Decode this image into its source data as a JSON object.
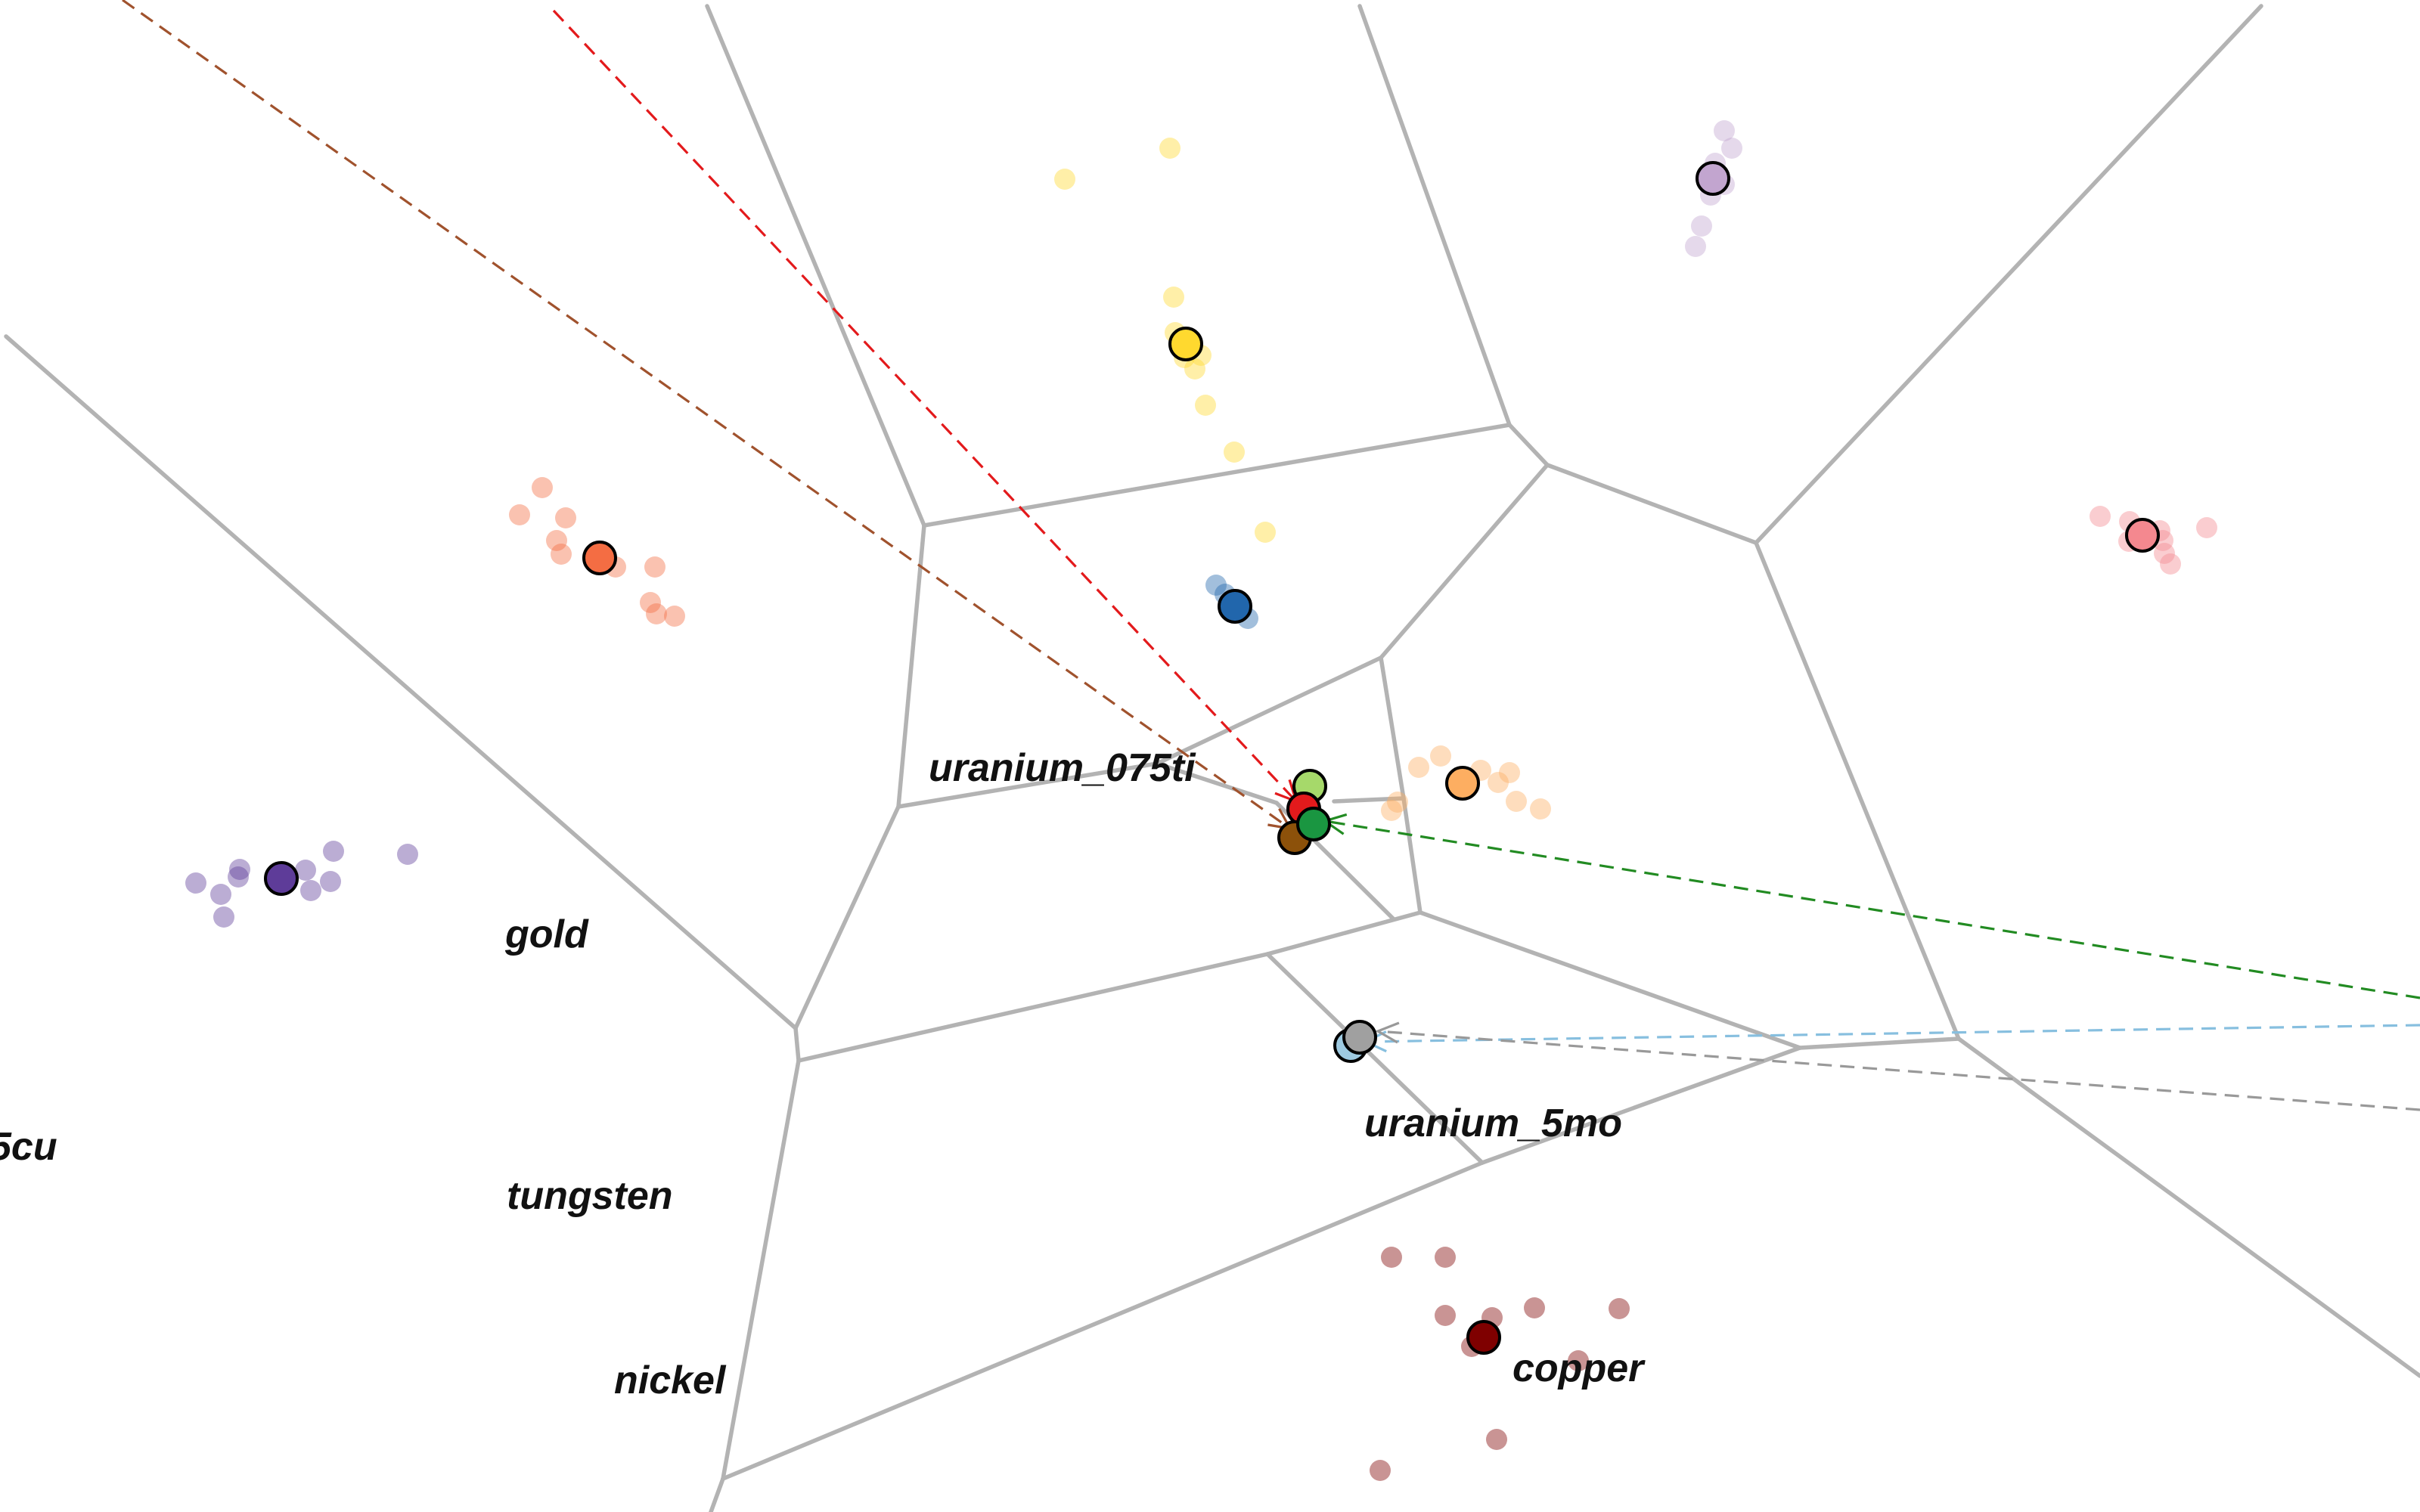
{
  "chart_data": {
    "type": "scatter",
    "title": "",
    "xlabel": "",
    "ylabel": "",
    "grid": false,
    "legend": "none",
    "labels": [
      "uranium_075ti",
      "gold",
      "uranium_5mo",
      "tungsten",
      "nickel",
      "copper",
      "5cu"
    ],
    "clusters": [
      {
        "color": "#ffd92f",
        "centroid": [
          1568,
          455
        ],
        "members": [
          [
            1408,
            237
          ],
          [
            1547,
            196
          ],
          [
            1552,
            393
          ],
          [
            1554,
            440
          ],
          [
            1566,
            473
          ],
          [
            1580,
            488
          ],
          [
            1588,
            470
          ],
          [
            1594,
            536
          ],
          [
            1632,
            598
          ],
          [
            1673,
            704
          ]
        ]
      },
      {
        "color": "#c2a5cf",
        "centroid": [
          2265,
          236
        ],
        "members": [
          [
            2280,
            173
          ],
          [
            2290,
            196
          ],
          [
            2268,
            216
          ],
          [
            2280,
            244
          ],
          [
            2262,
            258
          ],
          [
            2250,
            299
          ],
          [
            2242,
            326
          ]
        ]
      },
      {
        "color": "#f46d43",
        "centroid": [
          793,
          738
        ],
        "members": [
          [
            717,
            645
          ],
          [
            748,
            685
          ],
          [
            687,
            681
          ],
          [
            736,
            715
          ],
          [
            742,
            733
          ],
          [
            814,
            750
          ],
          [
            866,
            750
          ],
          [
            860,
            797
          ],
          [
            868,
            812
          ],
          [
            892,
            815
          ]
        ]
      },
      {
        "color": "#2166ac",
        "centroid": [
          1633,
          802
        ],
        "members": [
          [
            1608,
            774
          ],
          [
            1620,
            786
          ],
          [
            1642,
            806
          ],
          [
            1650,
            818
          ]
        ]
      },
      {
        "color": "#f4888f",
        "centroid": [
          2833,
          708
        ],
        "members": [
          [
            2777,
            683
          ],
          [
            2816,
            690
          ],
          [
            2856,
            702
          ],
          [
            2918,
            698
          ],
          [
            2815,
            716
          ],
          [
            2860,
            715
          ],
          [
            2862,
            732
          ],
          [
            2870,
            746
          ]
        ]
      },
      {
        "color": "#5e3c99",
        "centroid": [
          372,
          1162
        ],
        "members": [
          [
            259,
            1168
          ],
          [
            292,
            1183
          ],
          [
            296,
            1213
          ],
          [
            317,
            1150
          ],
          [
            315,
            1160
          ],
          [
            404,
            1151
          ],
          [
            441,
            1126
          ],
          [
            437,
            1166
          ],
          [
            411,
            1178
          ],
          [
            539,
            1130
          ]
        ]
      },
      {
        "color": "#fdae61",
        "centroid": [
          1934,
          1036
        ],
        "members": [
          [
            1876,
            1015
          ],
          [
            1905,
            1000
          ],
          [
            1958,
            1019
          ],
          [
            1996,
            1022
          ],
          [
            1981,
            1035
          ],
          [
            2005,
            1060
          ],
          [
            2037,
            1070
          ],
          [
            1848,
            1061
          ],
          [
            1840,
            1072
          ]
        ]
      },
      {
        "color": "#7f0000",
        "centroid": [
          1962,
          1769
        ],
        "members": [
          [
            1840,
            1663
          ],
          [
            1911,
            1663
          ],
          [
            1911,
            1740
          ],
          [
            1973,
            1743
          ],
          [
            2029,
            1730
          ],
          [
            2141,
            1731
          ],
          [
            2087,
            1800
          ],
          [
            1946,
            1781
          ],
          [
            1979,
            1904
          ],
          [
            1825,
            1945
          ]
        ]
      }
    ],
    "points": [
      {
        "color": "#a6d96a",
        "xy": [
          1732,
          1040
        ]
      },
      {
        "color": "#e31a1c",
        "xy": [
          1724,
          1070
        ]
      },
      {
        "color": "#8c510a",
        "xy": [
          1712,
          1108
        ]
      },
      {
        "color": "#1a9641",
        "xy": [
          1737,
          1090
        ]
      },
      {
        "color": "#9ecae1",
        "xy": [
          1786,
          1383
        ]
      },
      {
        "color": "#a0a0a0",
        "xy": [
          1798,
          1372
        ]
      }
    ],
    "arrows": [
      {
        "color": "#a0522d",
        "from": [
          162,
          0
        ],
        "to": [
          1706,
          1096
        ]
      },
      {
        "color": "#e31a1c",
        "from": [
          732,
          14
        ],
        "to": [
          1714,
          1060
        ]
      },
      {
        "color": "#228b22",
        "from": [
          3200,
          1320
        ],
        "to": [
          1752,
          1086
        ]
      },
      {
        "color": "#87bfdf",
        "from": [
          3200,
          1356
        ],
        "to": [
          1806,
          1378
        ]
      },
      {
        "color": "#999999",
        "from": [
          3200,
          1468
        ],
        "to": [
          1822,
          1364
        ]
      }
    ]
  }
}
